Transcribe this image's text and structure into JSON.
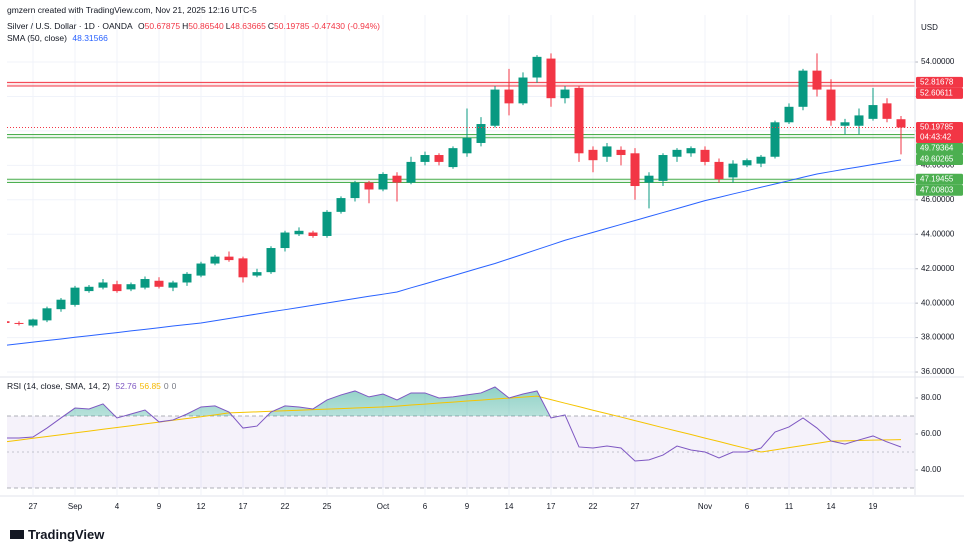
{
  "attribution": "gmzern created with TradingView.com, Nov 21, 2025 12:16 UTC-5",
  "brand": "TradingView",
  "chart_data": [
    {
      "type": "candlestick",
      "title": "Silver / U.S. Dollar · 1D · OANDA",
      "readout": [
        {
          "key": "O",
          "value": "50.67875"
        },
        {
          "key": "H",
          "value": "50.86540"
        },
        {
          "key": "L",
          "value": "48.63665"
        },
        {
          "key": "C",
          "value": "50.19785"
        }
      ],
      "change": "-0.47430 (-0.94%)",
      "currency": "USD",
      "countdown": "04:43:42",
      "categories": [
        null,
        null,
        "27",
        null,
        null,
        "Sep",
        null,
        null,
        "4",
        null,
        null,
        "9",
        null,
        null,
        "12",
        null,
        null,
        "17",
        null,
        null,
        "22",
        null,
        null,
        "25",
        null,
        null,
        null,
        "Oct",
        null,
        null,
        "6",
        null,
        null,
        "9",
        null,
        null,
        "14",
        null,
        null,
        "17",
        null,
        null,
        "22",
        null,
        null,
        "27",
        null,
        null,
        null,
        null,
        "Nov",
        null,
        null,
        "6",
        null,
        null,
        "11",
        null,
        null,
        "14",
        null,
        null,
        "19",
        null,
        null
      ],
      "open": [
        38.95,
        38.85,
        38.7,
        39.0,
        39.65,
        39.9,
        40.7,
        40.9,
        41.1,
        40.8,
        40.9,
        41.3,
        40.9,
        41.2,
        41.6,
        42.3,
        42.7,
        42.6,
        41.6,
        41.8,
        43.2,
        44.0,
        44.1,
        43.9,
        45.3,
        46.1,
        47.0,
        46.6,
        47.4,
        47.0,
        48.2,
        48.6,
        47.9,
        48.7,
        49.3,
        50.3,
        52.4,
        51.6,
        53.1,
        54.2,
        51.9,
        52.5,
        48.9,
        48.5,
        48.9,
        48.7,
        47.0,
        47.1,
        48.5,
        48.7,
        48.9,
        48.2,
        47.3,
        48.0,
        48.1,
        48.5,
        50.5,
        51.4,
        53.5,
        52.4,
        50.3,
        50.3,
        50.7,
        51.6,
        50.67875
      ],
      "high": [
        39.0,
        38.95,
        39.1,
        39.8,
        40.3,
        41.0,
        41.05,
        41.4,
        41.3,
        41.2,
        41.55,
        41.5,
        41.3,
        41.8,
        42.4,
        42.8,
        43.0,
        42.7,
        42.0,
        43.3,
        44.2,
        44.4,
        44.2,
        45.4,
        46.2,
        47.1,
        47.1,
        47.6,
        47.6,
        48.5,
        48.8,
        48.7,
        49.1,
        51.3,
        50.8,
        52.6,
        53.6,
        53.4,
        54.4,
        54.5,
        52.6,
        52.6,
        49.1,
        49.3,
        49.1,
        49.0,
        47.6,
        48.7,
        49.0,
        49.1,
        49.1,
        48.4,
        48.3,
        48.4,
        48.6,
        50.6,
        51.6,
        53.6,
        54.5,
        53.0,
        50.7,
        51.3,
        52.5,
        51.9,
        50.8654
      ],
      "low": [
        38.7,
        38.7,
        38.6,
        38.9,
        39.5,
        39.8,
        40.6,
        40.8,
        40.6,
        40.7,
        40.8,
        40.85,
        40.7,
        41.0,
        41.5,
        42.2,
        42.4,
        41.2,
        41.5,
        41.7,
        43.0,
        43.9,
        43.8,
        43.8,
        45.2,
        45.9,
        45.8,
        46.5,
        45.9,
        46.9,
        48.0,
        48.0,
        47.8,
        48.5,
        49.1,
        50.2,
        50.9,
        51.5,
        52.8,
        51.4,
        51.6,
        48.2,
        47.6,
        48.2,
        48.0,
        46.0,
        45.5,
        46.8,
        48.2,
        48.5,
        48.0,
        47.0,
        47.0,
        47.9,
        47.9,
        48.4,
        50.4,
        51.2,
        52.0,
        50.3,
        49.8,
        49.8,
        50.6,
        50.5,
        48.63665
      ],
      "close": [
        38.85,
        38.8,
        39.05,
        39.7,
        40.2,
        40.9,
        40.95,
        41.2,
        40.7,
        41.1,
        41.4,
        40.95,
        41.2,
        41.7,
        42.3,
        42.7,
        42.5,
        41.5,
        41.8,
        43.2,
        44.1,
        44.2,
        43.9,
        45.3,
        46.1,
        47.0,
        46.6,
        47.5,
        47.0,
        48.2,
        48.6,
        48.2,
        49.0,
        49.6,
        50.4,
        52.4,
        51.6,
        53.1,
        54.3,
        51.9,
        52.4,
        48.7,
        48.3,
        49.1,
        48.6,
        46.8,
        47.4,
        48.6,
        48.9,
        49.0,
        48.2,
        47.2,
        48.1,
        48.3,
        48.5,
        50.5,
        51.4,
        53.5,
        52.4,
        50.6,
        50.5,
        50.9,
        51.5,
        50.7,
        50.19785
      ],
      "up_color": "#089981",
      "down_color": "#f23645",
      "ylim": [
        35.77,
        56.73
      ],
      "yticks": [
        {
          "value": 36,
          "label": "36.00000"
        },
        {
          "value": 38,
          "label": "38.00000"
        },
        {
          "value": 40,
          "label": "40.00000"
        },
        {
          "value": 42,
          "label": "42.00000"
        },
        {
          "value": 44,
          "label": "44.00000"
        },
        {
          "value": 46,
          "label": "46.00000"
        },
        {
          "value": 48,
          "label": "48.00000"
        },
        {
          "value": 50,
          "label": "50.00000"
        },
        {
          "value": 52,
          "label": "52.00000"
        },
        {
          "value": 54,
          "label": "54.00000"
        }
      ],
      "grid": true,
      "zones": [
        {
          "values": [
            52.81678,
            52.60611
          ],
          "color": "#f23645"
        },
        {
          "values": [
            49.79364,
            49.60265
          ],
          "color": "#4caf50"
        },
        {
          "values": [
            47.19455,
            47.00803
          ],
          "color": "#4caf50"
        }
      ],
      "overlays": [
        {
          "name": "SMA (50, close)",
          "readout": "48.31566",
          "color": "#2962ff",
          "values": [
            37.55,
            37.64,
            37.74,
            37.83,
            37.92,
            38.02,
            38.11,
            38.2,
            38.29,
            38.39,
            38.48,
            38.57,
            38.67,
            38.76,
            38.85,
            38.98,
            39.11,
            39.24,
            39.37,
            39.5,
            39.62,
            39.75,
            39.88,
            40.01,
            40.14,
            40.27,
            40.4,
            40.52,
            40.65,
            40.89,
            41.12,
            41.36,
            41.59,
            41.83,
            42.07,
            42.3,
            42.57,
            42.84,
            43.11,
            43.38,
            43.65,
            43.88,
            44.11,
            44.34,
            44.57,
            44.8,
            45.03,
            45.26,
            45.49,
            45.72,
            45.95,
            46.14,
            46.34,
            46.53,
            46.73,
            46.92,
            47.11,
            47.31,
            47.5,
            47.64,
            47.78,
            47.91,
            48.05,
            48.18,
            48.31566
          ]
        }
      ]
    },
    {
      "type": "line",
      "title": "RSI (14, close, SMA, 14, 2)",
      "readout": [
        {
          "text": "52.76",
          "color": "#7e57c2"
        },
        {
          "text": "56.85",
          "color": "#f5b800"
        },
        {
          "text": "0",
          "color": "#787b86"
        },
        {
          "text": "0",
          "color": "#787b86"
        }
      ],
      "series": [
        {
          "color": "#7e57c2",
          "values": [
            57.8,
            57.8,
            58.3,
            63.3,
            68.9,
            74.4,
            73.9,
            76.7,
            68.9,
            71.1,
            73.3,
            66.7,
            67.8,
            71.1,
            75.0,
            75.6,
            72.2,
            63.3,
            64.4,
            72.2,
            75.6,
            75.0,
            73.9,
            78.9,
            81.7,
            83.9,
            80.6,
            82.2,
            78.9,
            82.8,
            82.8,
            80.0,
            80.6,
            81.7,
            82.8,
            86.1,
            80.0,
            82.2,
            83.9,
            68.9,
            70.6,
            52.8,
            52.2,
            53.3,
            52.2,
            45.0,
            45.6,
            48.3,
            53.3,
            51.1,
            50.0,
            46.7,
            50.0,
            50.0,
            52.2,
            61.1,
            63.9,
            68.9,
            63.3,
            56.1,
            54.4,
            56.7,
            58.9,
            55.6,
            52.76
          ]
        },
        {
          "color": "#f5c400",
          "values": [
            55.6,
            56.6,
            57.6,
            58.6,
            59.6,
            60.6,
            61.6,
            62.6,
            63.6,
            64.6,
            65.6,
            66.6,
            67.6,
            68.6,
            69.6,
            70.6,
            71.7,
            72.0,
            72.3,
            72.6,
            72.9,
            73.2,
            73.5,
            73.8,
            74.1,
            74.4,
            74.7,
            75.0,
            75.5,
            76.1,
            76.6,
            77.2,
            77.7,
            78.3,
            78.8,
            79.4,
            79.9,
            80.5,
            81.0,
            79.1,
            77.1,
            75.2,
            73.2,
            71.3,
            69.4,
            67.4,
            65.5,
            63.5,
            61.6,
            59.7,
            57.7,
            55.8,
            53.8,
            51.9,
            50.0,
            51.2,
            52.4,
            53.6,
            54.8,
            56.0,
            56.2,
            56.4,
            56.6,
            56.7,
            56.85
          ]
        }
      ],
      "ylim": [
        26.1,
        91.1
      ],
      "yticks": [
        {
          "value": 40,
          "label": "40.00"
        },
        {
          "value": 60,
          "label": "60.00"
        },
        {
          "value": 80,
          "label": "80.00"
        }
      ],
      "band": [
        30,
        70
      ],
      "midline": 50
    }
  ]
}
